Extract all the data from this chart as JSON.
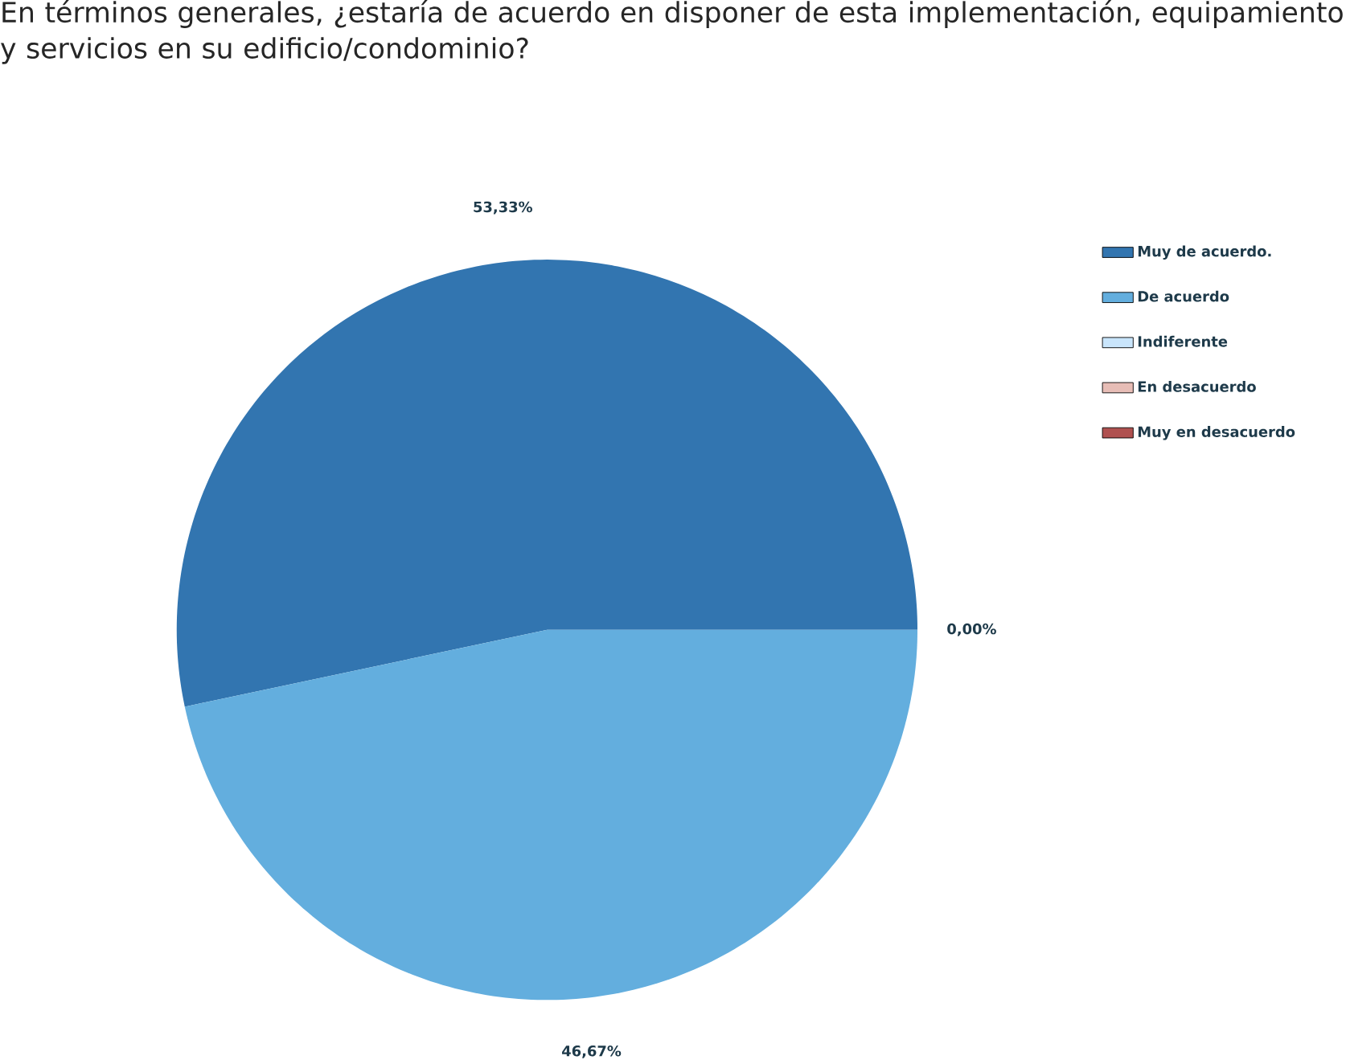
{
  "chart_data": {
    "type": "pie",
    "title": "En términos generales, ¿estaría de acuerdo en disponer de esta implementación, equipamiento y servicios en su edificio/condominio?",
    "categories": [
      "Muy de acuerdo.",
      "De acuerdo",
      "Indiferente",
      "En desacuerdo",
      "Muy en desacuerdo"
    ],
    "values": [
      53.33,
      46.67,
      0,
      0,
      0
    ],
    "colors": [
      "#3275b0",
      "#63aede",
      "#c9e5fb",
      "#e7bdb6",
      "#b05150"
    ],
    "value_labels": [
      "53,33%",
      "46,67%",
      "0,00%",
      null,
      null
    ],
    "legend": "right"
  }
}
